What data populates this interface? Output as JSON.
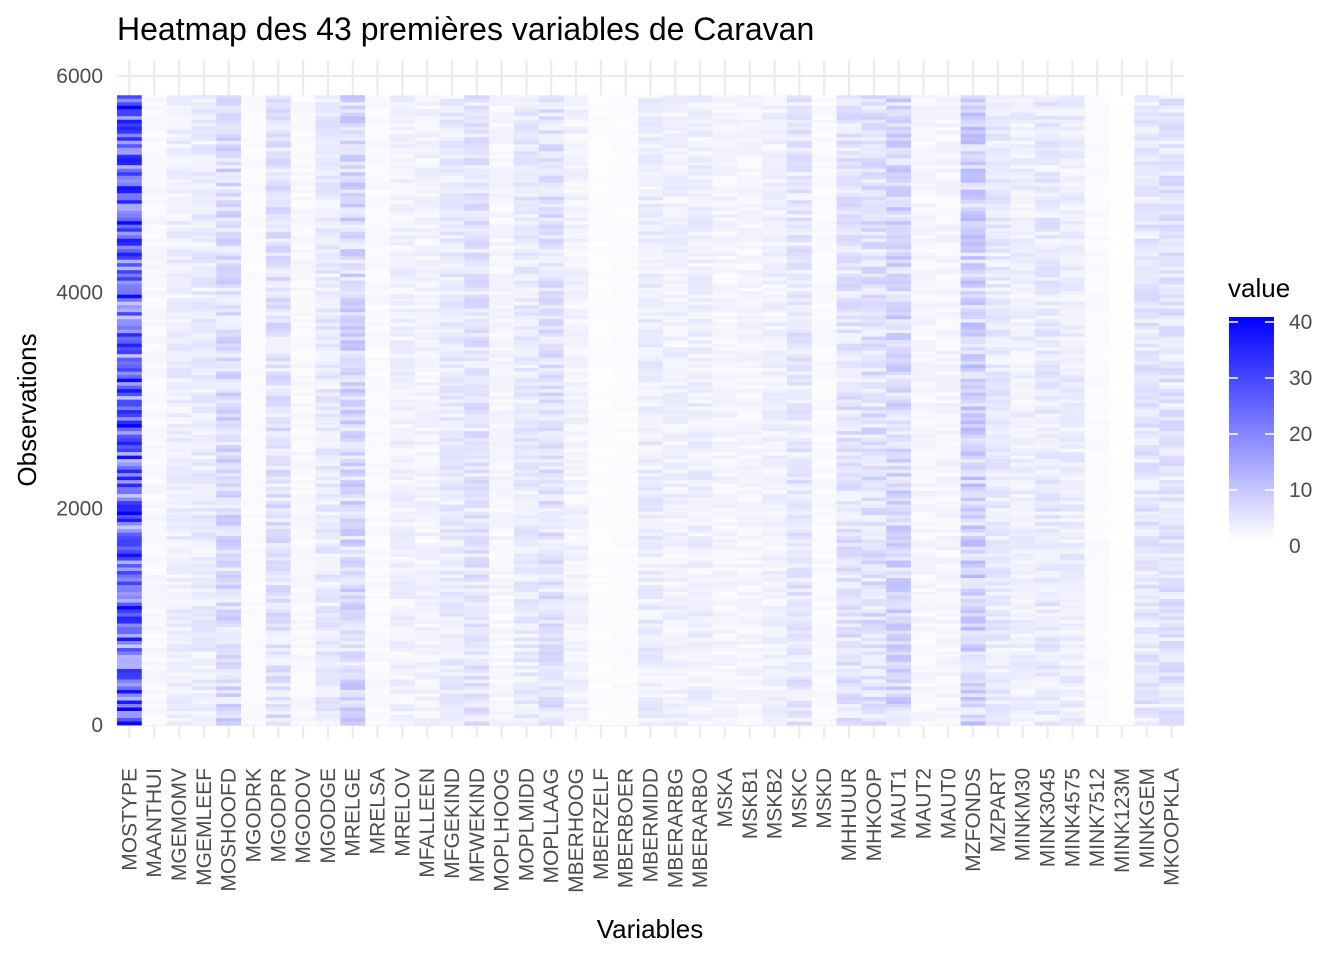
{
  "chart_data": {
    "type": "heatmap",
    "title": "Heatmap des 43 premières variables de Caravan",
    "xlabel": "Variables",
    "ylabel": "Observations",
    "categories": [
      "MOSTYPE",
      "MAANTHUI",
      "MGEMOMV",
      "MGEMLEEF",
      "MOSHOOFD",
      "MGODRK",
      "MGODPR",
      "MGODOV",
      "MGODGE",
      "MRELGE",
      "MRELSA",
      "MRELOV",
      "MFALLEEN",
      "MFGEKIND",
      "MFWEKIND",
      "MOPLHOOG",
      "MOPLMIDD",
      "MOPLLAAG",
      "MBERHOOG",
      "MBERZELF",
      "MBERBOER",
      "MBERMIDD",
      "MBERARBG",
      "MBERARBO",
      "MSKA",
      "MSKB1",
      "MSKB2",
      "MSKC",
      "MSKD",
      "MHHUUR",
      "MHKOOP",
      "MAUT1",
      "MAUT2",
      "MAUT0",
      "MZFONDS",
      "MZPART",
      "MINKM30",
      "MINK3045",
      "MINK4575",
      "MINK7512",
      "MINK123M",
      "MINKGEM",
      "MKOOPKLA"
    ],
    "column_mean_values": [
      24,
      1.1,
      2.7,
      3.0,
      5.8,
      0.7,
      4.6,
      1.1,
      3.3,
      6.2,
      0.9,
      2.3,
      1.9,
      3.2,
      4.3,
      1.5,
      3.3,
      4.6,
      1.9,
      0.4,
      0.6,
      2.9,
      2.3,
      2.6,
      1.7,
      1.6,
      2.3,
      3.8,
      0.9,
      4.3,
      4.8,
      6.1,
      1.4,
      1.6,
      6.9,
      3.4,
      2.6,
      3.5,
      2.8,
      0.7,
      0.1,
      3.8,
      4.2
    ],
    "n_observations": 5822,
    "ylim": [
      0,
      6000
    ],
    "y_ticks": [
      "0",
      "2000",
      "4000",
      "6000"
    ],
    "grid": true,
    "legend": {
      "title": "value",
      "placement": "right",
      "min": 0,
      "max": 40,
      "ticks": [
        "0",
        "10",
        "20",
        "30",
        "40"
      ],
      "low_color": "#ffffff",
      "high_color": "#0000ff"
    }
  }
}
